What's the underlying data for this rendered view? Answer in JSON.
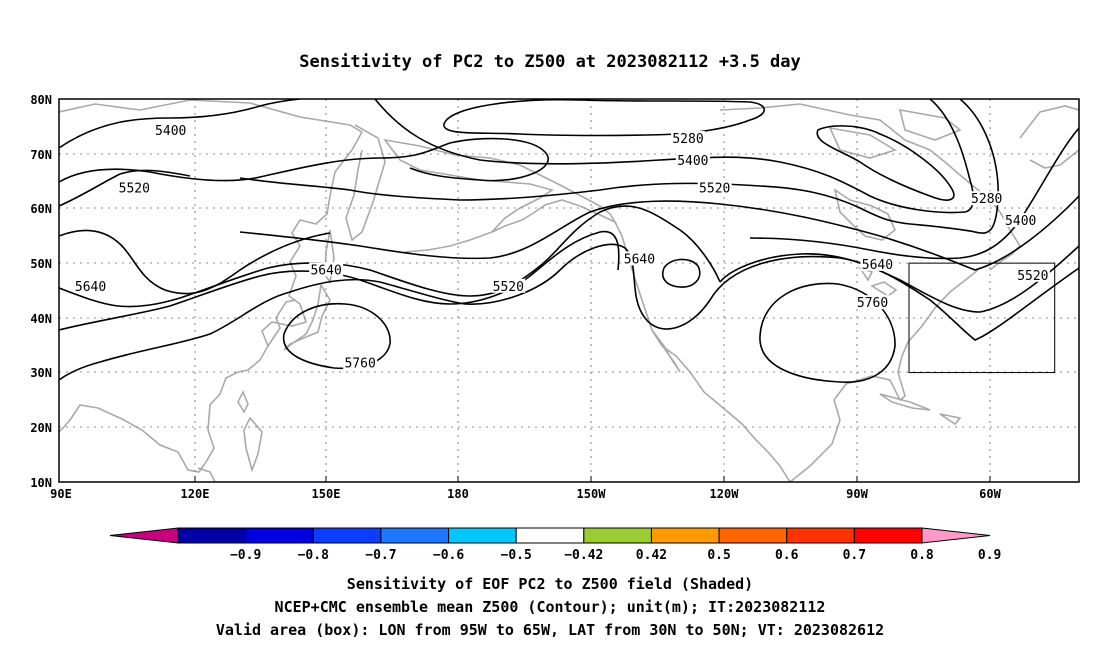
{
  "title": "Sensitivity of PC2 to Z500 at 2023082112 +3.5 day",
  "map": {
    "lon_range": [
      90,
      300
    ],
    "lat_range": [
      10,
      80
    ],
    "x_ticks": [
      "90E",
      "120E",
      "150E",
      "180",
      "150W",
      "120W",
      "90W",
      "60W"
    ],
    "y_ticks": [
      "80N",
      "70N",
      "60N",
      "50N",
      "40N",
      "30N",
      "20N",
      "10N"
    ],
    "grid": "dotted",
    "coastline_color": "#a9a9a9",
    "contour_color": "#000000",
    "valid_box": {
      "lon": [
        265,
        295
      ],
      "lat": [
        30,
        50
      ]
    }
  },
  "contour_labels": [
    {
      "text": "5400",
      "lon": 113,
      "lat": 74
    },
    {
      "text": "5520",
      "lon": 105.5,
      "lat": 63.5
    },
    {
      "text": "5640",
      "lon": 96.5,
      "lat": 45.5
    },
    {
      "text": "5640",
      "lon": 145,
      "lat": 48.5
    },
    {
      "text": "5760",
      "lon": 152,
      "lat": 31.5
    },
    {
      "text": "5520",
      "lon": 182.5,
      "lat": 45.5
    },
    {
      "text": "5280",
      "lon": 219.5,
      "lat": 72.5
    },
    {
      "text": "5400",
      "lon": 220.5,
      "lat": 68.5
    },
    {
      "text": "5520",
      "lon": 225,
      "lat": 63.5
    },
    {
      "text": "5640",
      "lon": 209.5,
      "lat": 50.5
    },
    {
      "text": "5640",
      "lon": 258.5,
      "lat": 49.5
    },
    {
      "text": "5760",
      "lon": 257.5,
      "lat": 42.5
    },
    {
      "text": "5280",
      "lon": 281,
      "lat": 61.5
    },
    {
      "text": "5400",
      "lon": 288,
      "lat": 57.5
    },
    {
      "text": "5520",
      "lon": 290.5,
      "lat": 47.5
    }
  ],
  "colorbar": {
    "labels": [
      "-0.9",
      "-0.8",
      "-0.7",
      "-0.6",
      "-0.5",
      "-0.42",
      "0.42",
      "0.5",
      "0.6",
      "0.7",
      "0.8",
      "0.9"
    ],
    "colors": [
      "#c8007f",
      "#0000a6",
      "#0000e0",
      "#0c3cff",
      "#1e78ff",
      "#00c8ff",
      "#ffffff",
      "#9acd32",
      "#ff9900",
      "#ff6600",
      "#ff3300",
      "#ff0000",
      "#ff9ac8"
    ]
  },
  "captions": [
    "Sensitivity of EOF PC2 to Z500 field (Shaded)",
    "NCEP+CMC ensemble mean Z500 (Contour); unit(m); IT:2023082112",
    "Valid area (box): LON from 95W to 65W, LAT from 30N to 50N; VT: 2023082612"
  ]
}
